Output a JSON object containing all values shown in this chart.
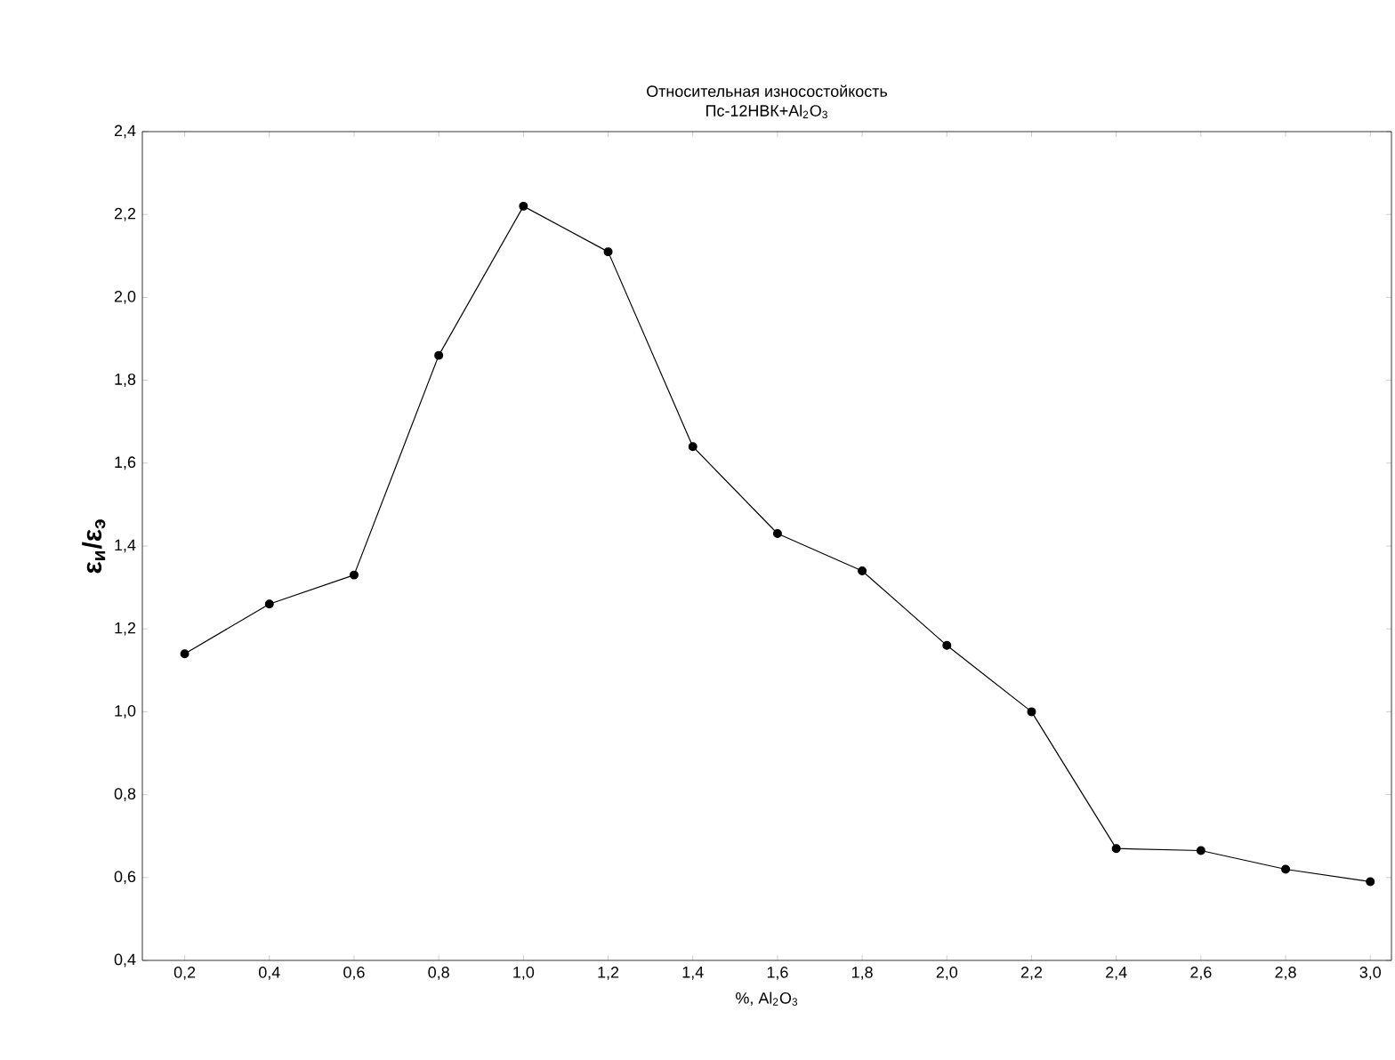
{
  "chart_data": {
    "type": "line",
    "title": "Относительная износостойкость",
    "subtitle": "Пс-12НВК+Al$_{2}$O$_{3}$",
    "xlabel": "%, Al$_{2}$O$_{3}$",
    "ylabel": "ε$_{и}$/ε$_{э}$",
    "x": [
      0.2,
      0.4,
      0.6,
      0.8,
      1.0,
      1.2,
      1.4,
      1.6,
      1.8,
      2.0,
      2.2,
      2.4,
      2.6,
      2.8,
      3.0
    ],
    "series": [
      {
        "color": "#000000",
        "values": [
          1.14,
          1.26,
          1.33,
          1.86,
          2.22,
          2.11,
          1.64,
          1.43,
          1.34,
          1.16,
          1.0,
          0.67,
          0.665,
          0.62,
          0.59
        ]
      }
    ],
    "marker": "circle",
    "line_style": "solid",
    "xlim": [
      0.1,
      3.05
    ],
    "ylim": [
      0.4,
      2.4
    ],
    "xticks": [
      {
        "value": 0.2,
        "label": "0,2"
      },
      {
        "value": 0.4,
        "label": "0,4"
      },
      {
        "value": 0.6,
        "label": "0,6"
      },
      {
        "value": 0.8,
        "label": "0,8"
      },
      {
        "value": 1.0,
        "label": "1,0"
      },
      {
        "value": 1.2,
        "label": "1,2"
      },
      {
        "value": 1.4,
        "label": "1,4"
      },
      {
        "value": 1.6,
        "label": "1,6"
      },
      {
        "value": 1.8,
        "label": "1,8"
      },
      {
        "value": 2.0,
        "label": "2,0"
      },
      {
        "value": 2.2,
        "label": "2,2"
      },
      {
        "value": 2.4,
        "label": "2,4"
      },
      {
        "value": 2.6,
        "label": "2,6"
      },
      {
        "value": 2.8,
        "label": "2,8"
      },
      {
        "value": 3.0,
        "label": "3,0"
      }
    ],
    "yticks": [
      {
        "value": 0.4,
        "label": "0,4"
      },
      {
        "value": 0.6,
        "label": "0,6"
      },
      {
        "value": 0.8,
        "label": "0,8"
      },
      {
        "value": 1.0,
        "label": "1,0"
      },
      {
        "value": 1.2,
        "label": "1,2"
      },
      {
        "value": 1.4,
        "label": "1,4"
      },
      {
        "value": 1.6,
        "label": "1,6"
      },
      {
        "value": 1.8,
        "label": "1,8"
      },
      {
        "value": 2.0,
        "label": "2,0"
      },
      {
        "value": 2.2,
        "label": "2,2"
      },
      {
        "value": 2.4,
        "label": "2,4"
      }
    ]
  }
}
